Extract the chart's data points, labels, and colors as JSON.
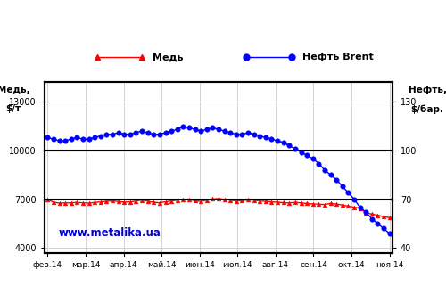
{
  "ylabel_left": "Медь,\n  $/т",
  "ylabel_right": "Нефть,\n$/бар.",
  "watermark": "www.metalika.ua",
  "legend_copper": "Медь",
  "legend_oil": "Нефть Brent",
  "xlabels": [
    "фев.14",
    "мар.14",
    "апр.14",
    "май.14",
    "июн.14",
    "июл.14",
    "авг.14",
    "сен.14",
    "окт.14",
    "ноя.14"
  ],
  "left_yticks": [
    4000,
    7000,
    10000,
    13000
  ],
  "right_yticks": [
    40,
    70,
    100,
    130
  ],
  "ylim_left": [
    3700,
    14200
  ],
  "ylim_right": [
    37,
    142
  ],
  "copper_color": "#ff0000",
  "oil_color": "#0000ff",
  "bg_color": "#ffffff",
  "copper_data": [
    6980,
    6820,
    6760,
    6770,
    6780,
    6800,
    6780,
    6760,
    6800,
    6840,
    6870,
    6900,
    6860,
    6820,
    6840,
    6880,
    6950,
    6870,
    6810,
    6780,
    6840,
    6890,
    6940,
    6990,
    6970,
    6910,
    6870,
    6940,
    7010,
    7040,
    6990,
    6940,
    6890,
    6910,
    6960,
    6940,
    6890,
    6870,
    6840,
    6810,
    6790,
    6770,
    6810,
    6770,
    6740,
    6710,
    6690,
    6670,
    6740,
    6700,
    6640,
    6570,
    6510,
    6450,
    6180,
    6080,
    6020,
    5920,
    5870
  ],
  "oil_data": [
    108,
    107,
    106,
    106,
    107,
    108,
    107,
    107,
    108,
    109,
    110,
    110,
    111,
    110,
    110,
    111,
    112,
    111,
    110,
    110,
    111,
    112,
    113,
    115,
    114,
    113,
    112,
    113,
    114,
    113,
    112,
    111,
    110,
    110,
    111,
    110,
    109,
    108,
    107,
    106,
    105,
    103,
    101,
    99,
    97,
    95,
    92,
    88,
    85,
    82,
    78,
    74,
    70,
    65,
    62,
    58,
    55,
    52,
    49
  ]
}
